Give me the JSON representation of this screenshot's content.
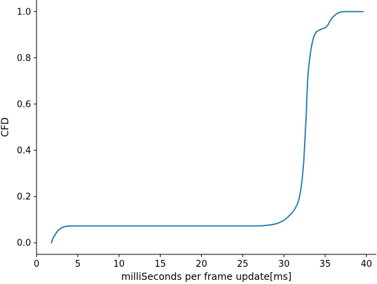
{
  "chart_data": {
    "type": "line",
    "xlabel": "milliSeconds per frame update[ms]",
    "ylabel": "CFD",
    "xlim": [
      0,
      41.2
    ],
    "ylim": [
      -0.05,
      1.05
    ],
    "xticks": [
      0,
      5,
      10,
      15,
      20,
      25,
      30,
      35,
      40
    ],
    "yticks": [
      0.0,
      0.2,
      0.4,
      0.6,
      0.8,
      1.0
    ],
    "xtick_labels": [
      "0",
      "5",
      "10",
      "15",
      "20",
      "25",
      "30",
      "35",
      "40"
    ],
    "ytick_labels": [
      "0.0",
      "0.2",
      "0.4",
      "0.6",
      "0.8",
      "1.0"
    ],
    "grid": false,
    "spines": [
      "left",
      "bottom"
    ],
    "series": [
      {
        "color": "#1f77b4",
        "x": [
          1.8,
          2.0,
          2.3,
          2.6,
          3.0,
          3.4,
          3.8,
          4.3,
          5.0,
          7.0,
          10.0,
          15.0,
          20.0,
          25.0,
          26.0,
          27.0,
          27.5,
          28.0,
          28.5,
          29.0,
          29.5,
          30.0,
          30.5,
          31.0,
          31.3,
          31.6,
          31.8,
          32.0,
          32.2,
          32.4,
          32.55,
          32.7,
          32.8,
          32.9,
          33.0,
          33.1,
          33.2,
          33.4,
          33.6,
          33.8,
          34.0,
          34.3,
          34.6,
          35.0,
          35.3,
          35.6,
          35.9,
          36.2,
          36.5,
          36.9,
          37.3,
          38.0,
          38.5,
          39.0,
          39.6
        ],
        "y": [
          0.0,
          0.02,
          0.038,
          0.053,
          0.064,
          0.07,
          0.072,
          0.073,
          0.073,
          0.073,
          0.073,
          0.073,
          0.073,
          0.073,
          0.073,
          0.073,
          0.074,
          0.076,
          0.078,
          0.082,
          0.088,
          0.097,
          0.112,
          0.13,
          0.145,
          0.165,
          0.185,
          0.22,
          0.27,
          0.35,
          0.45,
          0.55,
          0.65,
          0.72,
          0.76,
          0.79,
          0.82,
          0.86,
          0.89,
          0.905,
          0.915,
          0.92,
          0.925,
          0.93,
          0.94,
          0.96,
          0.975,
          0.985,
          0.993,
          0.998,
          1.0,
          1.0,
          1.0,
          1.0,
          1.0
        ]
      }
    ]
  }
}
